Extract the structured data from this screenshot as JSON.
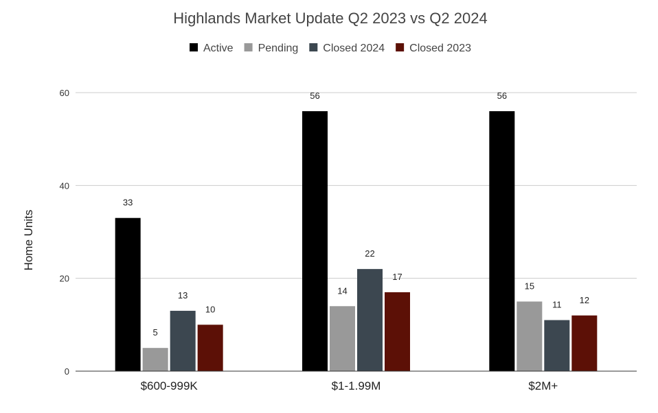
{
  "chart_data": {
    "type": "bar",
    "title": "Highlands Market Update Q2 2023 vs Q2 2024",
    "xlabel": "",
    "ylabel": "Home Units",
    "ylim": [
      0,
      60
    ],
    "yticks": [
      0,
      20,
      40,
      60
    ],
    "legend_position": "top",
    "grid": true,
    "categories": [
      "$600-999K",
      "$1-1.99M",
      "$2M+"
    ],
    "series": [
      {
        "name": "Active",
        "color": "#000000",
        "values": [
          33,
          56,
          56
        ]
      },
      {
        "name": "Pending",
        "color": "#999999",
        "values": [
          5,
          14,
          15
        ]
      },
      {
        "name": "Closed 2024",
        "color": "#3c4750",
        "values": [
          13,
          22,
          11
        ]
      },
      {
        "name": "Closed 2023",
        "color": "#5c1006",
        "values": [
          10,
          17,
          12
        ]
      }
    ]
  }
}
